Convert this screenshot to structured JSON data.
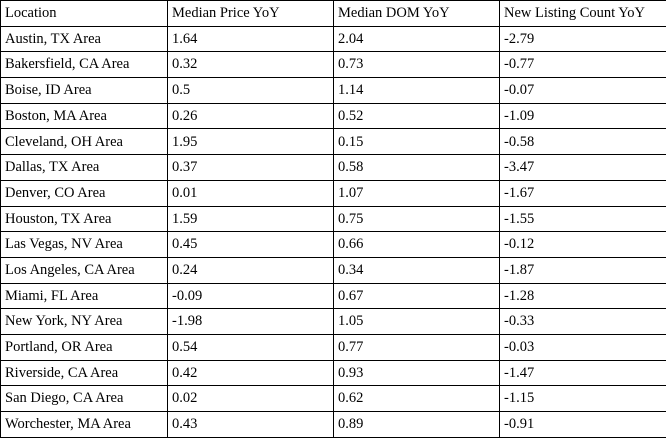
{
  "table": {
    "headers": [
      "Location",
      "Median Price YoY",
      "Median DOM YoY",
      "New Listing Count YoY"
    ],
    "rows": [
      [
        "Austin, TX Area",
        "1.64",
        "2.04",
        "-2.79"
      ],
      [
        "Bakersfield, CA Area",
        "0.32",
        "0.73",
        "-0.77"
      ],
      [
        "Boise, ID Area",
        "0.5",
        "1.14",
        "-0.07"
      ],
      [
        "Boston, MA Area",
        "0.26",
        "0.52",
        "-1.09"
      ],
      [
        "Cleveland, OH Area",
        "1.95",
        "0.15",
        "-0.58"
      ],
      [
        "Dallas, TX Area",
        "0.37",
        "0.58",
        "-3.47"
      ],
      [
        "Denver, CO Area",
        "0.01",
        "1.07",
        "-1.67"
      ],
      [
        "Houston, TX Area",
        "1.59",
        "0.75",
        "-1.55"
      ],
      [
        "Las Vegas, NV Area",
        "0.45",
        "0.66",
        "-0.12"
      ],
      [
        "Los Angeles, CA Area",
        "0.24",
        "0.34",
        "-1.87"
      ],
      [
        "Miami, FL Area",
        "-0.09",
        "0.67",
        "-1.28"
      ],
      [
        "New York, NY Area",
        "-1.98",
        "1.05",
        "-0.33"
      ],
      [
        "Portland, OR Area",
        "0.54",
        "0.77",
        "-0.03"
      ],
      [
        "Riverside, CA Area",
        "0.42",
        "0.93",
        "-1.47"
      ],
      [
        "San Diego, CA Area",
        "0.02",
        "0.62",
        "-1.15"
      ],
      [
        "Worchester, MA Area",
        "0.43",
        "0.89",
        "-0.91"
      ]
    ]
  }
}
